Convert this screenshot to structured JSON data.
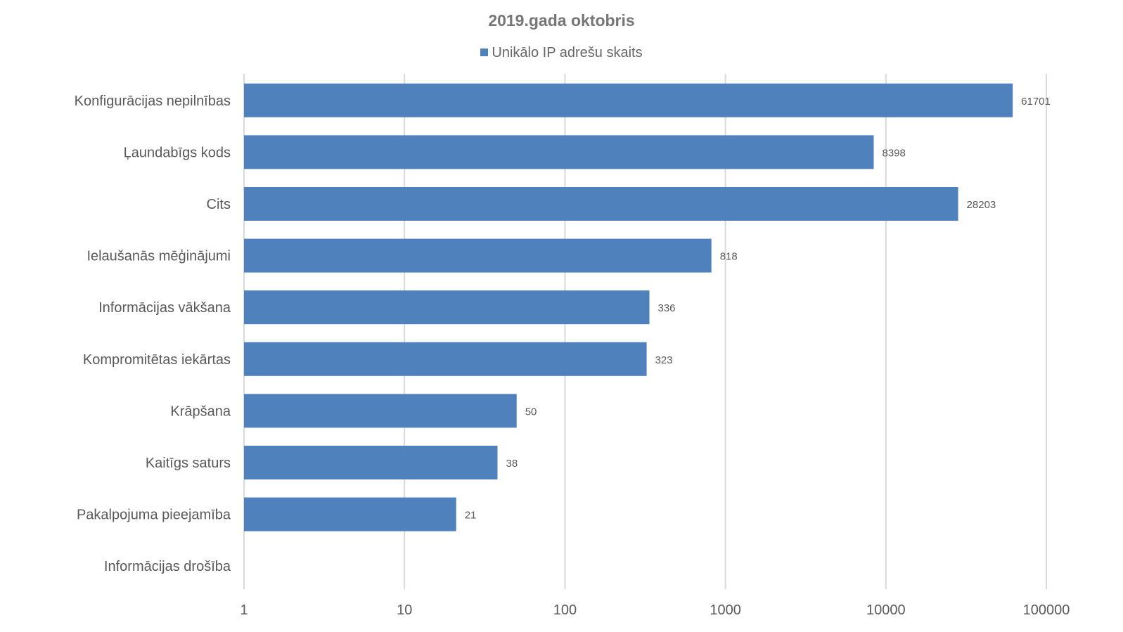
{
  "chart_data": {
    "type": "bar",
    "orientation": "horizontal",
    "title": "2019.gada oktobris",
    "xscale": "log",
    "xlim": [
      1,
      100000
    ],
    "xticks": [
      "1",
      "10",
      "100",
      "1000",
      "10000",
      "100000"
    ],
    "grid": true,
    "legend_position": "top",
    "categories": [
      "Konfigurācijas nepilnības",
      "Ļaundabīgs kods",
      "Cits",
      "Ielaušanās mēģinājumi",
      "Informācijas vākšana",
      "Kompromitētas iekārtas",
      "Krāpšana",
      "Kaitīgs saturs",
      "Pakalpojuma pieejamība",
      "Informācijas drošība"
    ],
    "series": [
      {
        "name": "Unikālo IP adrešu skaits",
        "color": "#4F81BD",
        "values": [
          61701,
          8398,
          28203,
          818,
          336,
          323,
          50,
          38,
          21,
          null
        ]
      }
    ]
  }
}
